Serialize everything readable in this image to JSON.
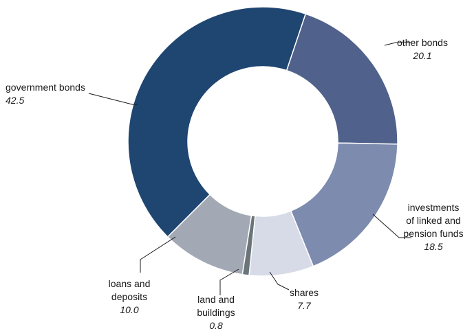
{
  "chart_data": {
    "type": "pie",
    "style": "donut",
    "legend": "none",
    "slices": [
      {
        "label_lines": [
          "other bonds"
        ],
        "value": 20.1,
        "value_text": "20.1",
        "color": "#50628b"
      },
      {
        "label_lines": [
          "investments",
          "of linked and",
          "pension funds"
        ],
        "value": 18.5,
        "value_text": "18.5",
        "color": "#7d8bae"
      },
      {
        "label_lines": [
          "shares"
        ],
        "value": 7.7,
        "value_text": "7.7",
        "color": "#d7dbe8"
      },
      {
        "label_lines": [
          "land and",
          "buildings"
        ],
        "value": 0.8,
        "value_text": "0.8",
        "color": "#6b7478"
      },
      {
        "label_lines": [
          "loans and",
          "deposits"
        ],
        "value": 10.0,
        "value_text": "10.0",
        "color": "#a3a9b4"
      },
      {
        "label_lines": [
          "government bonds"
        ],
        "value": 42.5,
        "value_text": "42.5",
        "color": "#1f4571"
      }
    ]
  }
}
